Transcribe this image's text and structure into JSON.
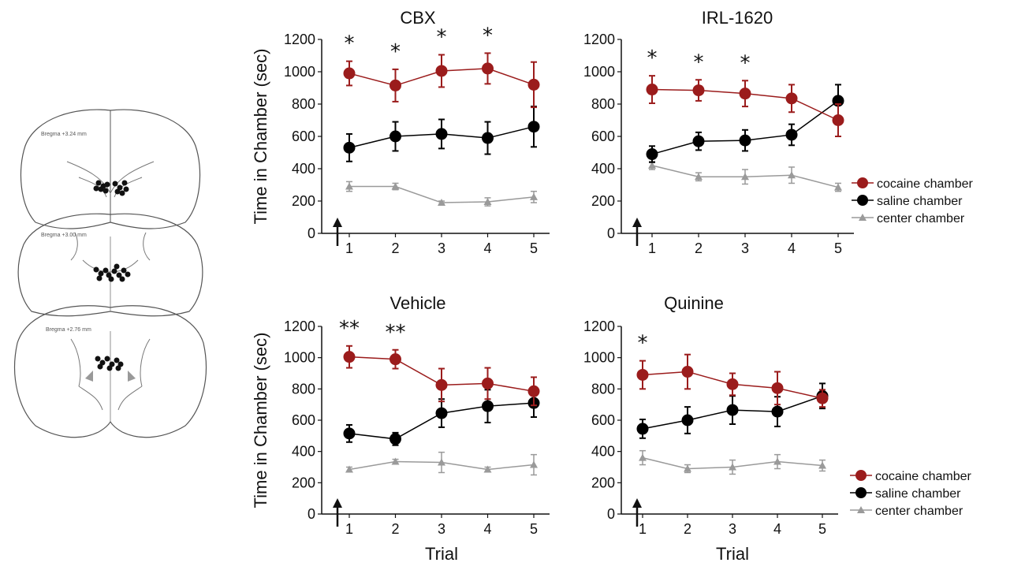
{
  "brain_sections": [
    {
      "label": "Bregma +3.24 mm"
    },
    {
      "label": "Bregma +3.00 mm"
    },
    {
      "label": "Bregma +2.76 mm"
    }
  ],
  "colors": {
    "cocaine": "#9b1c1c",
    "saline": "#000000",
    "center": "#9a9a9a"
  },
  "legend": {
    "cocaine": "cocaine chamber",
    "saline": "saline chamber",
    "center": "center chamber"
  },
  "chart_data": [
    {
      "type": "line",
      "title": "CBX",
      "xlabel": "",
      "ylabel": "Time in Chamber (sec)",
      "x": [
        1,
        2,
        3,
        4,
        5
      ],
      "ylim": [
        0,
        1200
      ],
      "yticks": [
        0,
        200,
        400,
        600,
        800,
        1000,
        1200
      ],
      "series": [
        {
          "name": "cocaine chamber",
          "values": [
            990,
            915,
            1005,
            1020,
            920
          ],
          "errors": [
            75,
            100,
            100,
            95,
            140
          ]
        },
        {
          "name": "saline chamber",
          "values": [
            530,
            600,
            615,
            590,
            660
          ],
          "errors": [
            85,
            90,
            90,
            100,
            125
          ]
        },
        {
          "name": "center chamber",
          "values": [
            290,
            290,
            190,
            195,
            225
          ],
          "errors": [
            30,
            20,
            10,
            25,
            35
          ]
        }
      ],
      "annotations": [
        "*",
        "*",
        "*",
        "*",
        ""
      ],
      "arrow_at": 1
    },
    {
      "type": "line",
      "title": "IRL-1620",
      "xlabel": "",
      "ylabel": "",
      "x": [
        1,
        2,
        3,
        4,
        5
      ],
      "ylim": [
        0,
        1200
      ],
      "yticks": [
        0,
        200,
        400,
        600,
        800,
        1000,
        1200
      ],
      "series": [
        {
          "name": "cocaine chamber",
          "values": [
            890,
            885,
            865,
            835,
            700
          ],
          "errors": [
            85,
            65,
            80,
            85,
            100
          ]
        },
        {
          "name": "saline chamber",
          "values": [
            490,
            570,
            575,
            610,
            820
          ],
          "errors": [
            50,
            55,
            65,
            65,
            100
          ]
        },
        {
          "name": "center chamber",
          "values": [
            420,
            350,
            350,
            360,
            285
          ],
          "errors": [
            25,
            25,
            45,
            50,
            25
          ]
        }
      ],
      "annotations": [
        "*",
        "*",
        "*",
        "",
        ""
      ],
      "arrow_at": 1
    },
    {
      "type": "line",
      "title": "Vehicle",
      "xlabel": "Trial",
      "ylabel": "Time in Chamber (sec)",
      "x": [
        1,
        2,
        3,
        4,
        5
      ],
      "ylim": [
        0,
        1200
      ],
      "yticks": [
        0,
        200,
        400,
        600,
        800,
        1000,
        1200
      ],
      "series": [
        {
          "name": "cocaine chamber",
          "values": [
            1005,
            990,
            825,
            835,
            785
          ],
          "errors": [
            70,
            60,
            105,
            100,
            90
          ]
        },
        {
          "name": "saline chamber",
          "values": [
            515,
            480,
            645,
            690,
            710
          ],
          "errors": [
            55,
            40,
            90,
            105,
            90
          ]
        },
        {
          "name": "center chamber",
          "values": [
            285,
            335,
            330,
            285,
            315
          ],
          "errors": [
            15,
            15,
            65,
            15,
            65
          ]
        }
      ],
      "annotations": [
        "**",
        "**",
        "",
        "",
        ""
      ],
      "arrow_at": 1
    },
    {
      "type": "line",
      "title": "Quinine",
      "xlabel": "Trial",
      "ylabel": "",
      "x": [
        1,
        2,
        3,
        4,
        5
      ],
      "ylim": [
        0,
        1200
      ],
      "yticks": [
        0,
        200,
        400,
        600,
        800,
        1000,
        1200
      ],
      "series": [
        {
          "name": "cocaine chamber",
          "values": [
            890,
            910,
            830,
            805,
            740
          ],
          "errors": [
            90,
            110,
            70,
            105,
            55
          ]
        },
        {
          "name": "saline chamber",
          "values": [
            545,
            600,
            665,
            655,
            755
          ],
          "errors": [
            60,
            85,
            90,
            95,
            80
          ]
        },
        {
          "name": "center chamber",
          "values": [
            360,
            290,
            300,
            335,
            310
          ],
          "errors": [
            45,
            25,
            45,
            45,
            35
          ]
        }
      ],
      "annotations": [
        "*",
        "",
        "",
        "",
        ""
      ],
      "arrow_at": 1
    }
  ]
}
